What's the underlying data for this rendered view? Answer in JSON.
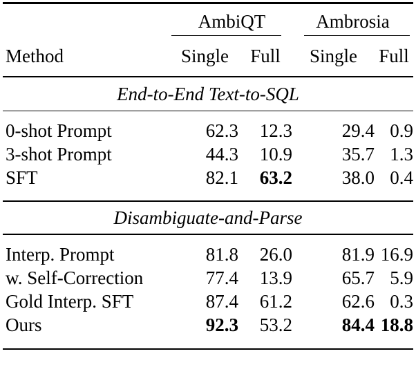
{
  "table": {
    "column_groups": [
      {
        "label": "AmbiQT"
      },
      {
        "label": "Ambrosia"
      }
    ],
    "method_header": "Method",
    "sub_headers": [
      "Single",
      "Full",
      "Single",
      "Full"
    ],
    "sections": [
      {
        "title": "End-to-End Text-to-SQL",
        "rows": [
          {
            "method": "0-shot Prompt",
            "values": [
              "62.3",
              "12.3",
              "29.4",
              "0.9"
            ],
            "bold": [
              false,
              false,
              false,
              false
            ]
          },
          {
            "method": "3-shot Prompt",
            "values": [
              "44.3",
              "10.9",
              "35.7",
              "1.3"
            ],
            "bold": [
              false,
              false,
              false,
              false
            ]
          },
          {
            "method": "SFT",
            "values": [
              "82.1",
              "63.2",
              "38.0",
              "0.4"
            ],
            "bold": [
              false,
              true,
              false,
              false
            ]
          }
        ]
      },
      {
        "title": "Disambiguate-and-Parse",
        "rows": [
          {
            "method": "Interp. Prompt",
            "values": [
              "81.8",
              "26.0",
              "81.9",
              "16.9"
            ],
            "bold": [
              false,
              false,
              false,
              false
            ]
          },
          {
            "method": "w. Self-Correction",
            "values": [
              "77.4",
              "13.9",
              "65.7",
              "5.9"
            ],
            "bold": [
              false,
              false,
              false,
              false
            ]
          },
          {
            "method": "Gold Interp. SFT",
            "values": [
              "87.4",
              "61.2",
              "62.6",
              "0.3"
            ],
            "bold": [
              false,
              false,
              false,
              false
            ]
          },
          {
            "method": "Ours",
            "values": [
              "92.3",
              "53.2",
              "84.4",
              "18.8"
            ],
            "bold": [
              true,
              false,
              true,
              true
            ]
          }
        ]
      }
    ]
  },
  "colors": {
    "background": "#ffffff",
    "text": "#000000",
    "rule": "#000000"
  }
}
